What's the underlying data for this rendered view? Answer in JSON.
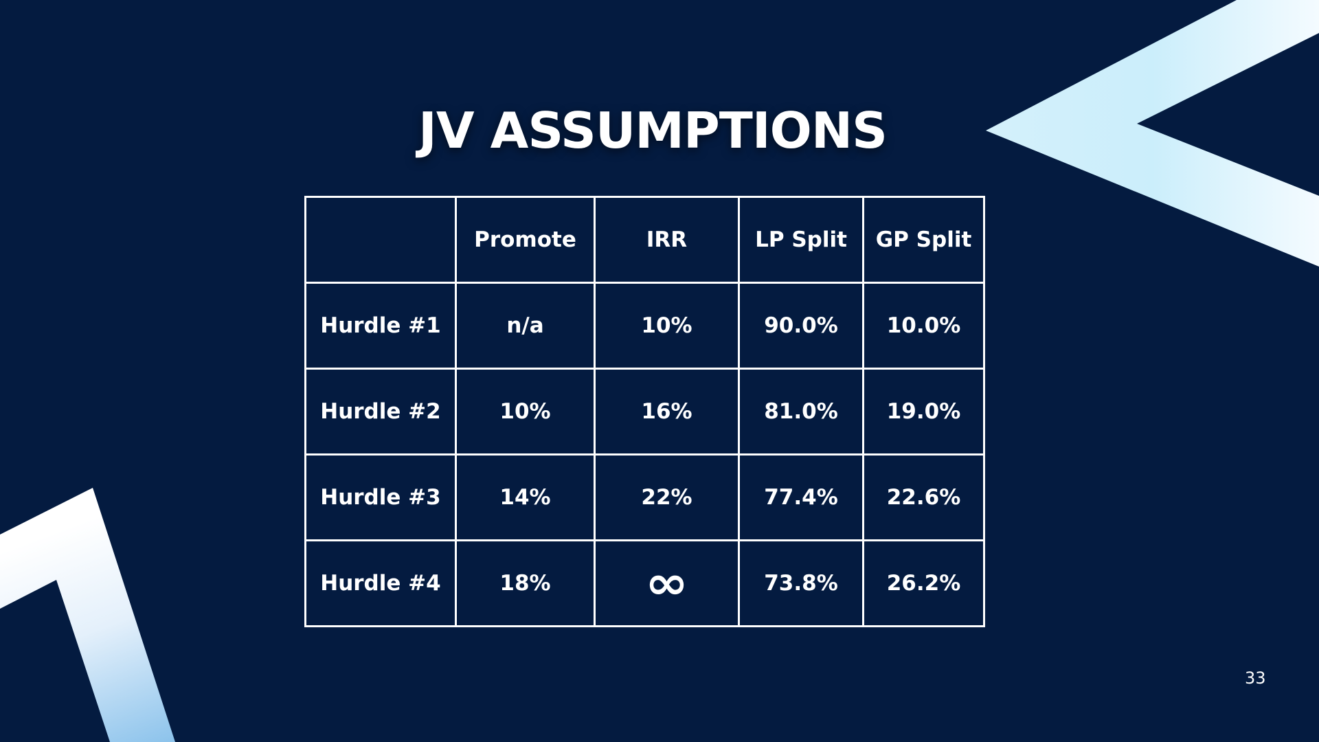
{
  "slide": {
    "title": "JV ASSUMPTIONS",
    "page_number": "33",
    "colors": {
      "background": "#041b40",
      "text": "#ffffff",
      "accent_light": "#d6f0fb",
      "accent_blue": "#8ec4ec"
    },
    "decorations": [
      "chevron-shape-top-right",
      "chevron-shape-bottom-left"
    ]
  },
  "table": {
    "headers": [
      "",
      "Promote",
      "IRR",
      "LP Split",
      "GP Split"
    ],
    "rows": [
      {
        "label": "Hurdle #1",
        "promote": "n/a",
        "irr": "10%",
        "lp_split": "90.0%",
        "gp_split": "10.0%"
      },
      {
        "label": "Hurdle #2",
        "promote": "10%",
        "irr": "16%",
        "lp_split": "81.0%",
        "gp_split": "19.0%"
      },
      {
        "label": "Hurdle #3",
        "promote": "14%",
        "irr": "22%",
        "lp_split": "77.4%",
        "gp_split": "22.6%"
      },
      {
        "label": "Hurdle #4",
        "promote": "18%",
        "irr": "∞",
        "lp_split": "73.8%",
        "gp_split": "26.2%"
      }
    ]
  }
}
